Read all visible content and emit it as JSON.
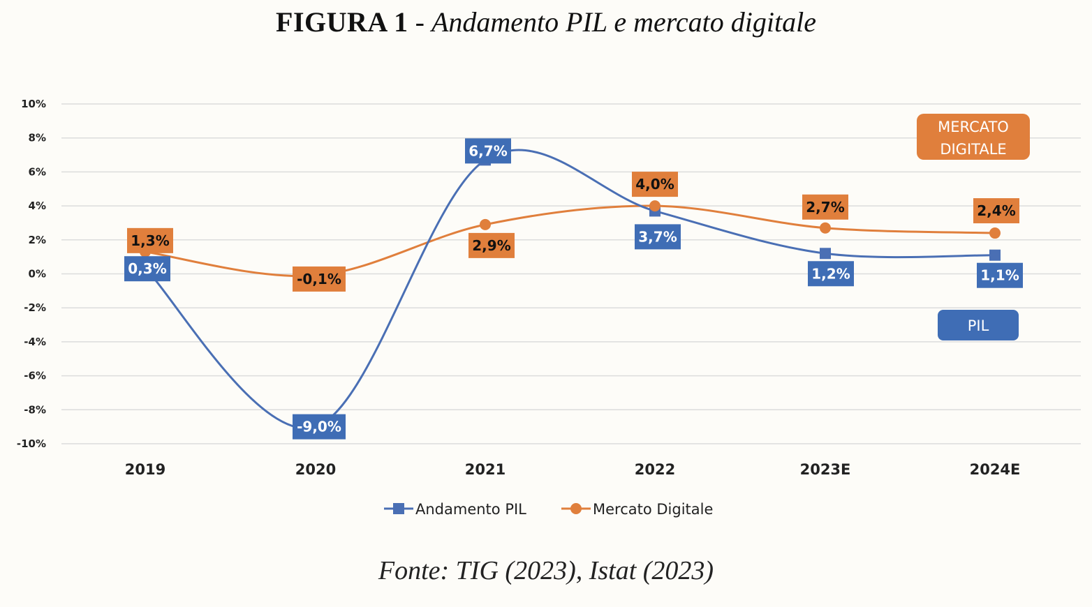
{
  "figure": {
    "label": "FIGURA 1",
    "separator": " - ",
    "subtitle": "Andamento PIL e mercato digitale"
  },
  "source": "Fonte: TIG (2023), Istat (2023)",
  "colors": {
    "pil": "#4a6fb4",
    "pil_box": "#3f6db5",
    "digitale": "#e07f3c",
    "digitale_box": "#e07f3c",
    "grid": "#dcdcdc"
  },
  "chart_data": {
    "type": "line",
    "title": "Andamento PIL e mercato digitale",
    "xlabel": "",
    "ylabel": "",
    "categories": [
      "2019",
      "2020",
      "2021",
      "2022",
      "2023E",
      "2024E"
    ],
    "ylim": [
      -10,
      10
    ],
    "yticks": [
      10,
      8,
      6,
      4,
      2,
      0,
      -2,
      -4,
      -6,
      -8,
      -10
    ],
    "ytick_labels": [
      "10%",
      "8%",
      "6%",
      "4%",
      "2%",
      "0%",
      "-2%",
      "-4%",
      "-6%",
      "-8%",
      "-10%"
    ],
    "grid": true,
    "legend_position": "bottom-center",
    "series": [
      {
        "name": "Andamento PIL",
        "marker": "square",
        "values": [
          0.3,
          -9.0,
          6.7,
          3.7,
          1.2,
          1.1
        ],
        "labels": [
          "0,3%",
          "-9,0%",
          "6,7%",
          "3,7%",
          "1,2%",
          "1,1%"
        ],
        "tag": "PIL"
      },
      {
        "name": "Mercato Digitale",
        "marker": "circle",
        "values": [
          1.3,
          -0.1,
          2.9,
          4.0,
          2.7,
          2.4
        ],
        "labels": [
          "1,3%",
          "-0,1%",
          "2,9%",
          "4,0%",
          "2,7%",
          "2,4%"
        ],
        "tag_lines": [
          "MERCATO",
          "DIGITALE"
        ]
      }
    ]
  }
}
